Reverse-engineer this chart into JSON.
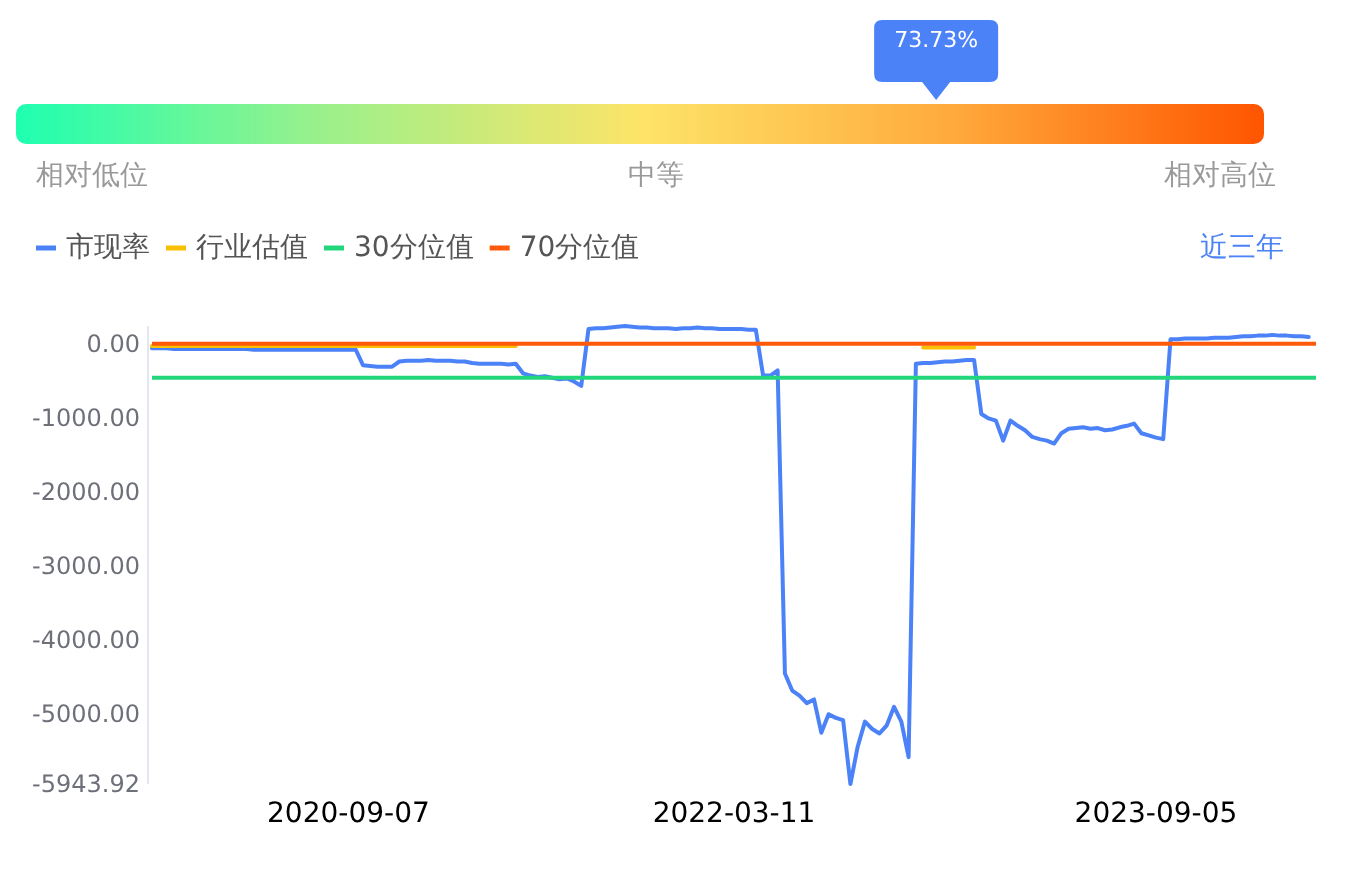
{
  "chart_data": [
    {
      "type": "other",
      "values": [
        73.73
      ],
      "value_labels": [
        "73.73%"
      ],
      "color": "#4b82f8",
      "annotations": [
        "相对低位",
        "中等",
        "相对高位"
      ]
    },
    {
      "type": "line",
      "categories": [
        null,
        null,
        null,
        null,
        null,
        null,
        null,
        null,
        null,
        null,
        null,
        null,
        null,
        null,
        null,
        null,
        null,
        null,
        null,
        null,
        null,
        null,
        null,
        null,
        null,
        null,
        null,
        "2020-09-07",
        null,
        null,
        null,
        null,
        null,
        null,
        null,
        null,
        null,
        null,
        null,
        null,
        null,
        null,
        null,
        null,
        null,
        null,
        null,
        null,
        null,
        null,
        null,
        null,
        null,
        null,
        null,
        null,
        null,
        null,
        null,
        null,
        null,
        null,
        null,
        null,
        null,
        null,
        null,
        null,
        null,
        null,
        null,
        null,
        null,
        null,
        null,
        null,
        null,
        null,
        null,
        null,
        "2022-03-11",
        null,
        null,
        null,
        null,
        null,
        null,
        null,
        null,
        null,
        null,
        null,
        null,
        null,
        null,
        null,
        null,
        null,
        null,
        null,
        null,
        null,
        null,
        null,
        null,
        null,
        null,
        null,
        null,
        null,
        null,
        null,
        null,
        null,
        null,
        null,
        null,
        null,
        null,
        null,
        null,
        null,
        null,
        null,
        null,
        null,
        null,
        null,
        null,
        null,
        null,
        null,
        null,
        null,
        null,
        null,
        null,
        null,
        "2023-09-05",
        null,
        null,
        null,
        null,
        null,
        null,
        null,
        null,
        null,
        null,
        null,
        null,
        null,
        null,
        null,
        null,
        null,
        null,
        null,
        null,
        null
      ],
      "series": [
        {
          "name": "市现率",
          "color": "#4b82f8",
          "values": [
            -50,
            -50,
            -50,
            -60,
            -60,
            -60,
            -60,
            -60,
            -60,
            -60,
            -60,
            -60,
            -60,
            -60,
            -70,
            -70,
            -70,
            -70,
            -70,
            -70,
            -70,
            -70,
            -70,
            -70,
            -70,
            -70,
            -70,
            -70,
            -70,
            -280,
            -290,
            -300,
            -300,
            -300,
            -230,
            -220,
            -220,
            -220,
            -210,
            -220,
            -220,
            -220,
            -230,
            -230,
            -250,
            -260,
            -260,
            -260,
            -260,
            -270,
            -260,
            -390,
            -420,
            -440,
            -430,
            -450,
            -470,
            -460,
            -500,
            -560,
            210,
            220,
            220,
            230,
            240,
            250,
            240,
            230,
            230,
            220,
            220,
            220,
            210,
            220,
            220,
            230,
            220,
            220,
            210,
            210,
            210,
            210,
            200,
            200,
            -420,
            -420,
            -350,
            -4450,
            -4680,
            -4750,
            -4850,
            -4800,
            -5250,
            -5000,
            -5050,
            -5080,
            -5943.92,
            -5440,
            -5100,
            -5200,
            -5260,
            -5150,
            -4900,
            -5100,
            -5580,
            -260,
            -250,
            -250,
            -240,
            -230,
            -230,
            -220,
            -210,
            -210,
            -940,
            -1000,
            -1030,
            -1300,
            -1030,
            -1100,
            -1160,
            -1250,
            -1280,
            -1300,
            -1340,
            -1200,
            -1140,
            -1130,
            -1120,
            -1140,
            -1130,
            -1160,
            -1150,
            -1120,
            -1100,
            -1070,
            -1200,
            -1230,
            -1260,
            -1280,
            70,
            70,
            80,
            80,
            80,
            80,
            90,
            90,
            90,
            100,
            110,
            110,
            120,
            120,
            130,
            120,
            120,
            110,
            110,
            100
          ]
        },
        {
          "name": "行业估值",
          "color": "#f8c000",
          "values": [
            -20,
            -20,
            -20,
            -20,
            -20,
            -20,
            -20,
            -20,
            -20,
            -20,
            -20,
            -20,
            -20,
            -20,
            -20,
            -20,
            -20,
            -20,
            -20,
            -20,
            -20,
            -20,
            -20,
            -20,
            -20,
            -20,
            -20,
            -20,
            -20,
            -20,
            -20,
            -20,
            -20,
            -20,
            -20,
            -20,
            -20,
            -20,
            -20,
            -20,
            -20,
            -20,
            -20,
            -20,
            -20,
            -20,
            -20,
            -20,
            -20,
            -20,
            -20,
            null,
            null,
            null,
            null,
            null,
            null,
            null,
            null,
            null,
            null,
            null,
            null,
            null,
            null,
            null,
            null,
            null,
            null,
            null,
            null,
            null,
            null,
            null,
            null,
            null,
            null,
            null,
            null,
            null,
            null,
            null,
            null,
            null,
            null,
            null,
            null,
            null,
            null,
            null,
            null,
            null,
            null,
            null,
            null,
            null,
            null,
            null,
            null,
            null,
            null,
            null,
            null,
            null,
            null,
            null,
            -40,
            -40,
            -40,
            -40,
            -40,
            -40,
            -40,
            -40,
            null,
            null,
            null,
            null,
            null,
            null,
            null,
            null,
            null,
            null,
            null,
            null,
            null,
            null,
            null,
            null,
            null,
            null,
            null,
            null,
            null,
            null,
            null,
            null,
            null,
            null,
            null,
            null,
            null,
            null,
            null,
            null,
            null,
            null,
            null,
            null,
            null,
            null,
            null,
            null,
            null,
            null,
            null,
            null,
            null,
            null
          ]
        }
      ],
      "ref_lines": [
        {
          "axis": "y",
          "value": -450,
          "label": "30分位值",
          "color": "#22d67c"
        },
        {
          "axis": "y",
          "value": 10,
          "label": "70分位值",
          "color": "#ff5a0a"
        }
      ],
      "ylim": [
        -5943.92,
        250
      ],
      "yticks": [
        {
          "value": 0,
          "label": "0.00"
        },
        {
          "value": -1000,
          "label": "-1000.00"
        },
        {
          "value": -2000,
          "label": "-2000.00"
        },
        {
          "value": -3000,
          "label": "-3000.00"
        },
        {
          "value": -4000,
          "label": "-4000.00"
        },
        {
          "value": -5000,
          "label": "-5000.00"
        },
        {
          "value": -5943.92,
          "label": "-5943.92"
        }
      ],
      "legend": "top left",
      "grid": false,
      "marker": "none",
      "annotations": [
        "近三年"
      ]
    }
  ]
}
